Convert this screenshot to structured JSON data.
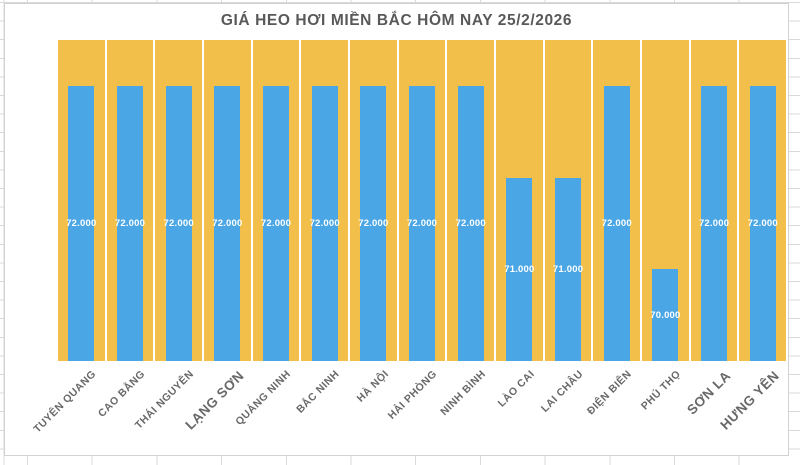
{
  "chart_data": {
    "type": "bar",
    "title": "GIÁ HEO HƠI MIỀN BẮC HÔM NAY 25/2/2026",
    "categories": [
      "TUYÊN QUANG",
      "CAO BẰNG",
      "THÁI NGUYÊN",
      "LẠNG SƠN",
      "QUẢNG NINH",
      "BẮC NINH",
      "HÀ NỘI",
      "HẢI PHÒNG",
      "NINH BÌNH",
      "LÀO CAI",
      "LAI CHÂU",
      "ĐIỆN BIÊN",
      "PHÚ THỌ",
      "SƠN LA",
      "HƯNG YÊN"
    ],
    "values": [
      72000,
      72000,
      72000,
      72000,
      72000,
      72000,
      72000,
      72000,
      72000,
      71000,
      71000,
      72000,
      70000,
      72000,
      72000
    ],
    "data_labels": [
      "72.000",
      "72.000",
      "72.000",
      "72.000",
      "72.000",
      "72.000",
      "72.000",
      "72.000",
      "72.000",
      "71.000",
      "71.000",
      "72.000",
      "70.000",
      "72.000",
      "72.000"
    ],
    "xlabel": "",
    "ylabel": "",
    "ylim": [
      69000,
      72500
    ],
    "background_bar_value": 72500,
    "grid": false,
    "legend": "none",
    "colors": {
      "value_bar": "#4aa6e4",
      "background_bar": "#f2c04a",
      "title_text": "#595959",
      "axis_label_text": "#686868",
      "data_label_text": "#ffffff",
      "sheet_gridline": "#d9d9d9"
    }
  }
}
